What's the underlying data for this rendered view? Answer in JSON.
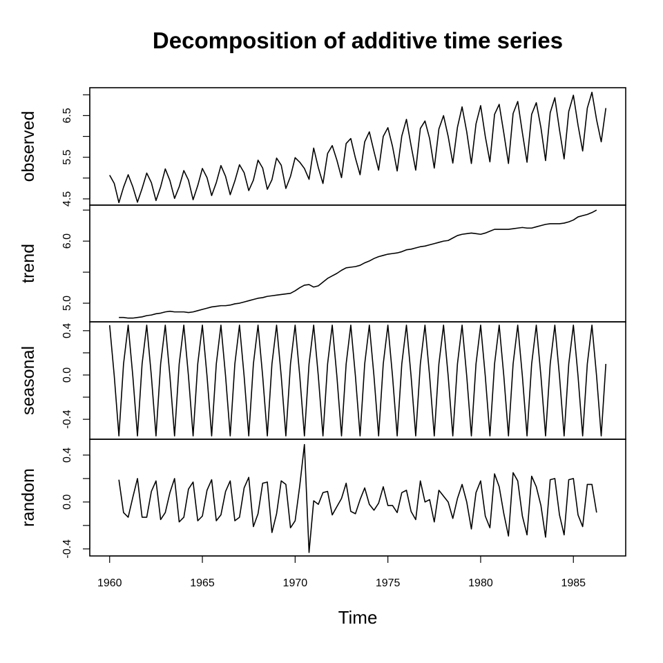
{
  "chart_data": {
    "type": "line",
    "title": "Decomposition of additive time series",
    "xlabel": "Time",
    "frequency": 4,
    "start": 1960,
    "xlim": [
      1958.93,
      1987.82
    ],
    "xticks": [
      1960,
      1965,
      1970,
      1975,
      1980,
      1985
    ],
    "xtick_labels": [
      "1960",
      "1965",
      "1970",
      "1975",
      "1980",
      "1985"
    ],
    "panels": [
      {
        "name": "observed",
        "ylabel": "observed",
        "start": 1960,
        "ylim": [
          4.35,
          7.17
        ],
        "ticks": [
          4.5,
          5.0,
          5.5,
          6.0,
          6.5,
          7.0
        ],
        "tick_labels": [
          {
            "v": 4.5,
            "t": "4.5"
          },
          {
            "v": 5.5,
            "t": "5.5"
          },
          {
            "v": 6.5,
            "t": "6.5"
          }
        ],
        "values": [
          5.07,
          4.87,
          4.41,
          4.78,
          5.08,
          4.79,
          4.42,
          4.75,
          5.12,
          4.89,
          4.46,
          4.79,
          5.22,
          4.94,
          4.51,
          4.79,
          5.18,
          4.95,
          4.48,
          4.82,
          5.23,
          5.01,
          4.58,
          4.89,
          5.3,
          5.04,
          4.6,
          4.93,
          5.32,
          5.13,
          4.7,
          4.95,
          5.43,
          5.24,
          4.73,
          4.96,
          5.48,
          5.31,
          4.75,
          5.04,
          5.49,
          5.38,
          5.23,
          4.97,
          5.72,
          5.25,
          4.87,
          5.59,
          5.78,
          5.43,
          5.01,
          5.83,
          5.95,
          5.48,
          5.08,
          5.87,
          6.11,
          5.64,
          5.19,
          6.0,
          6.21,
          5.76,
          5.17,
          6.01,
          6.41,
          5.78,
          5.19,
          6.19,
          6.37,
          5.95,
          5.24,
          6.18,
          6.5,
          6.0,
          5.36,
          6.22,
          6.71,
          6.11,
          5.35,
          6.3,
          6.74,
          6.0,
          5.39,
          6.53,
          6.77,
          6.08,
          5.35,
          6.55,
          6.84,
          6.09,
          5.38,
          6.53,
          6.81,
          6.21,
          5.42,
          6.57,
          6.93,
          6.16,
          5.46,
          6.6,
          6.99,
          6.27,
          5.65,
          6.68,
          7.06,
          6.4,
          5.87,
          6.68
        ]
      },
      {
        "name": "trend",
        "ylabel": "trend",
        "start": 1960.5,
        "ylim": [
          4.7,
          6.58
        ],
        "ticks": [
          5.0,
          5.5,
          6.0,
          6.5
        ],
        "tick_labels": [
          {
            "v": 5.0,
            "t": "5.0"
          },
          {
            "v": 6.0,
            "t": "6.0"
          }
        ],
        "values": [
          4.77,
          4.77,
          4.76,
          4.76,
          4.77,
          4.78,
          4.8,
          4.81,
          4.83,
          4.84,
          4.86,
          4.87,
          4.86,
          4.86,
          4.86,
          4.85,
          4.86,
          4.88,
          4.9,
          4.92,
          4.94,
          4.95,
          4.96,
          4.96,
          4.97,
          4.99,
          5.0,
          5.02,
          5.04,
          5.06,
          5.08,
          5.09,
          5.11,
          5.12,
          5.13,
          5.14,
          5.15,
          5.16,
          5.2,
          5.25,
          5.29,
          5.3,
          5.26,
          5.28,
          5.34,
          5.4,
          5.44,
          5.48,
          5.53,
          5.57,
          5.58,
          5.59,
          5.61,
          5.65,
          5.68,
          5.72,
          5.75,
          5.77,
          5.79,
          5.8,
          5.81,
          5.83,
          5.86,
          5.87,
          5.89,
          5.91,
          5.92,
          5.94,
          5.96,
          5.98,
          6.0,
          6.01,
          6.05,
          6.09,
          6.11,
          6.12,
          6.13,
          6.12,
          6.11,
          6.13,
          6.16,
          6.19,
          6.19,
          6.19,
          6.19,
          6.2,
          6.21,
          6.22,
          6.21,
          6.21,
          6.23,
          6.25,
          6.27,
          6.28,
          6.28,
          6.28,
          6.29,
          6.31,
          6.34,
          6.39,
          6.41,
          6.43,
          6.46,
          6.5
        ]
      },
      {
        "name": "seasonal",
        "ylabel": "seasonal",
        "start": 1960,
        "ylim": [
          -0.58,
          0.48
        ],
        "ticks": [
          -0.4,
          -0.2,
          0.0,
          0.2,
          0.4
        ],
        "tick_labels": [
          {
            "v": -0.4,
            "t": "-0.4"
          },
          {
            "v": 0.0,
            "t": "0.0"
          },
          {
            "v": 0.4,
            "t": "0.4"
          }
        ],
        "pattern": [
          0.45,
          -0.01,
          -0.55,
          0.1
        ],
        "length": 108
      },
      {
        "name": "random",
        "ylabel": "random",
        "start": 1960.5,
        "ylim": [
          -0.46,
          0.535
        ],
        "ticks": [
          -0.4,
          -0.2,
          0.0,
          0.2,
          0.4
        ],
        "tick_labels": [
          {
            "v": -0.4,
            "t": "-0.4"
          },
          {
            "v": 0.0,
            "t": "0.0"
          },
          {
            "v": 0.4,
            "t": "0.4"
          }
        ],
        "values": [
          0.19,
          -0.09,
          -0.13,
          0.04,
          0.2,
          -0.13,
          -0.13,
          0.09,
          0.18,
          -0.15,
          -0.09,
          0.08,
          0.2,
          -0.17,
          -0.13,
          0.11,
          0.17,
          -0.16,
          -0.12,
          0.1,
          0.19,
          -0.16,
          -0.11,
          0.09,
          0.18,
          -0.16,
          -0.13,
          0.12,
          0.21,
          -0.21,
          -0.1,
          0.16,
          0.17,
          -0.26,
          -0.1,
          0.18,
          0.15,
          -0.22,
          -0.16,
          0.14,
          0.49,
          -0.43,
          0.01,
          -0.02,
          0.08,
          0.09,
          -0.11,
          -0.04,
          0.03,
          0.16,
          -0.08,
          -0.1,
          0.02,
          0.12,
          -0.02,
          -0.07,
          -0.01,
          0.13,
          -0.03,
          -0.03,
          -0.09,
          0.08,
          0.1,
          -0.08,
          -0.15,
          0.18,
          0.0,
          0.02,
          -0.17,
          0.1,
          0.05,
          0.0,
          -0.14,
          0.03,
          0.15,
          0.0,
          -0.23,
          0.08,
          0.18,
          -0.12,
          -0.22,
          0.24,
          0.13,
          -0.1,
          -0.29,
          0.25,
          0.18,
          -0.12,
          -0.28,
          0.22,
          0.13,
          -0.03,
          -0.3,
          0.19,
          0.2,
          -0.11,
          -0.28,
          0.19,
          0.2,
          -0.11,
          -0.21,
          0.15,
          0.15,
          -0.09
        ]
      }
    ]
  }
}
